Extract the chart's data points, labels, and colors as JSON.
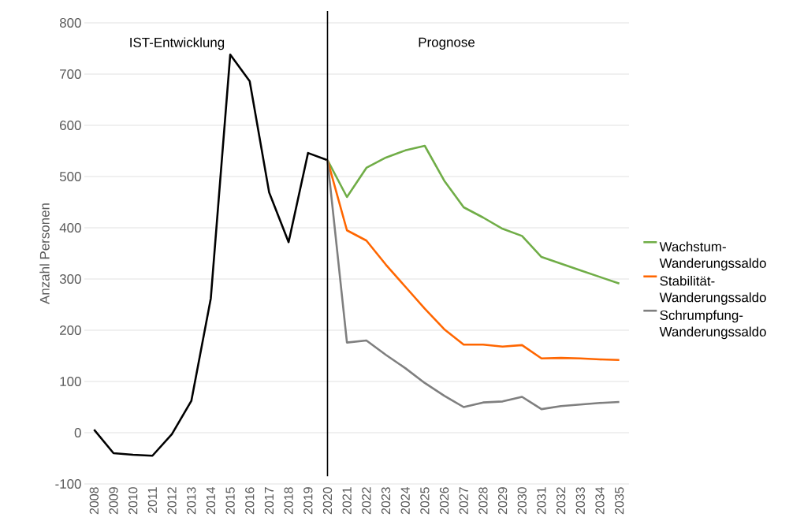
{
  "chart_data": {
    "type": "line",
    "ylabel": "Anzahl Personen",
    "xlim": [
      2007.5,
      2035.5
    ],
    "ylim": [
      -100,
      800
    ],
    "xticks": [
      2008,
      2009,
      2010,
      2011,
      2012,
      2013,
      2014,
      2015,
      2016,
      2017,
      2018,
      2019,
      2020,
      2021,
      2022,
      2023,
      2024,
      2025,
      2026,
      2027,
      2028,
      2029,
      2030,
      2031,
      2032,
      2033,
      2034,
      2035
    ],
    "yticks": [
      -100,
      0,
      100,
      200,
      300,
      400,
      500,
      600,
      700,
      800
    ],
    "grid": "y",
    "legend": "right",
    "series": [
      {
        "color": "#000000",
        "x": [
          2008,
          2009,
          2010,
          2011,
          2012,
          2013,
          2014,
          2015,
          2016,
          2017,
          2018,
          2019,
          2020
        ],
        "values": [
          6,
          -40,
          -43,
          -45,
          -3,
          62,
          262,
          738,
          686,
          469,
          372,
          546,
          532
        ]
      },
      {
        "name": "Wachstum-Wanderungssaldo",
        "color": "#70ad47",
        "x": [
          2020,
          2021,
          2022,
          2023,
          2024,
          2025,
          2026,
          2027,
          2028,
          2029,
          2030,
          2031,
          2032,
          2033,
          2034,
          2035
        ],
        "values": [
          532,
          460,
          517,
          537,
          551,
          560,
          492,
          440,
          420,
          398,
          384,
          343,
          330,
          317,
          304,
          291
        ]
      },
      {
        "name": "Stabilität-Wanderungssaldo",
        "color": "#ff6600",
        "x": [
          2020,
          2021,
          2022,
          2023,
          2024,
          2025,
          2026,
          2027,
          2028,
          2029,
          2030,
          2031,
          2032,
          2033,
          2034,
          2035
        ],
        "values": [
          532,
          395,
          375,
          328,
          285,
          242,
          202,
          172,
          172,
          168,
          171,
          145,
          146,
          145,
          143,
          142
        ]
      },
      {
        "name": "Schrumpfung-Wanderungssaldo",
        "color": "#7f7f7f",
        "x": [
          2020,
          2021,
          2022,
          2023,
          2024,
          2025,
          2026,
          2027,
          2028,
          2029,
          2030,
          2031,
          2032,
          2033,
          2034,
          2035
        ],
        "values": [
          532,
          176,
          180,
          152,
          126,
          97,
          72,
          50,
          59,
          61,
          70,
          46,
          52,
          55,
          58,
          60
        ]
      }
    ],
    "ref_lines": [
      {
        "axis": "x",
        "value": 2020,
        "color": "#000000"
      }
    ],
    "annotations": [
      "IST-Entwicklung",
      "Prognose"
    ]
  }
}
